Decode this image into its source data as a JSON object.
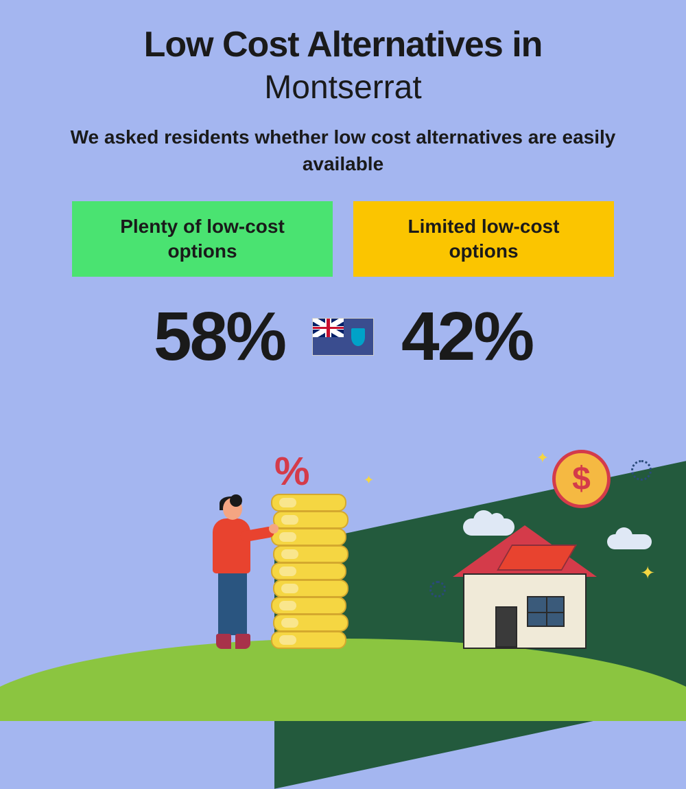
{
  "title": {
    "line1": "Low Cost Alternatives in",
    "line2": "Montserrat"
  },
  "subtitle": "We asked residents whether low cost alternatives are easily available",
  "options": {
    "left": {
      "label": "Plenty of low-cost options",
      "percent": "58%",
      "bg_color": "#4ae371"
    },
    "right": {
      "label": "Limited low-cost options",
      "percent": "42%",
      "bg_color": "#fbc500"
    }
  },
  "colors": {
    "background": "#a4b6f0",
    "text": "#1a1a1a",
    "hill_dark": "#235a3d",
    "hill_light": "#8bc540",
    "coin_fill": "#f5d642",
    "coin_border": "#d4a82e",
    "percent_sign": "#d43b4a",
    "house_body": "#f0ead8",
    "house_roof": "#d43b4a",
    "person_shirt": "#e8432f",
    "person_pants": "#2a5580",
    "dollar_bg": "#f5b942",
    "dollar_fg": "#d43b4a",
    "cloud": "#dfe8f5"
  },
  "illustration": {
    "percent_symbol": "%",
    "dollar_symbol": "$",
    "coin_count": 9
  },
  "typography": {
    "title_fontsize": 52,
    "title_weight": 900,
    "subtitle_fontsize": 28,
    "label_fontsize": 28,
    "percent_fontsize": 100
  }
}
